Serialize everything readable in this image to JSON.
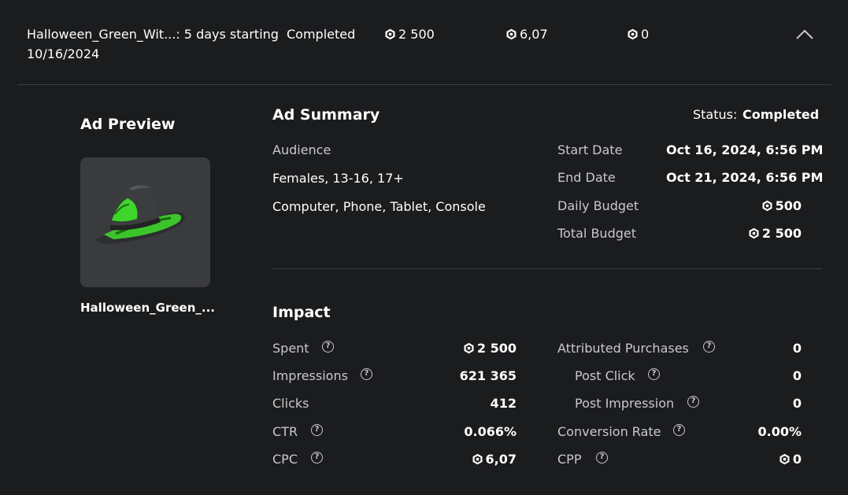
{
  "row": {
    "name_line1": "Halloween_Green_Wit...: 5 days starting",
    "name_line2": "10/16/2024",
    "status": "Completed",
    "budget": "2 500",
    "cpc": "6,07",
    "third": "0"
  },
  "preview": {
    "heading": "Ad Preview",
    "item_name": "Halloween_Green_..."
  },
  "summary": {
    "heading": "Ad Summary",
    "status_label": "Status:",
    "status_value": "Completed",
    "audience_label": "Audience",
    "audience_demo": "Females, 13-16, 17+",
    "audience_devices": "Computer, Phone, Tablet, Console",
    "start_label": "Start Date",
    "start_value": "Oct 16, 2024, 6:56 PM",
    "end_label": "End Date",
    "end_value": "Oct 21, 2024, 6:56 PM",
    "daily_label": "Daily Budget",
    "daily_value": "500",
    "total_label": "Total Budget",
    "total_value": "2 500"
  },
  "impact": {
    "heading": "Impact",
    "spent_label": "Spent",
    "spent_value": "2 500",
    "impressions_label": "Impressions",
    "impressions_value": "621 365",
    "clicks_label": "Clicks",
    "clicks_value": "412",
    "ctr_label": "CTR",
    "ctr_value": "0.066%",
    "cpc_label": "CPC",
    "cpc_value": "6,07",
    "attributed_label": "Attributed Purchases",
    "attributed_value": "0",
    "post_click_label": "Post Click",
    "post_click_value": "0",
    "post_impression_label": "Post Impression",
    "post_impression_value": "0",
    "conversion_label": "Conversion Rate",
    "conversion_value": "0.00%",
    "cpp_label": "CPP",
    "cpp_value": "0"
  },
  "colors": {
    "background": "#1b1c1e",
    "thumbnail_bg": "#393b3d",
    "divider": "#3c3d40",
    "label_text": "#c8c9cb",
    "hat_green": "#3ed62a"
  },
  "icons": [
    "robux-icon",
    "help-icon",
    "chevron-up-icon"
  ]
}
